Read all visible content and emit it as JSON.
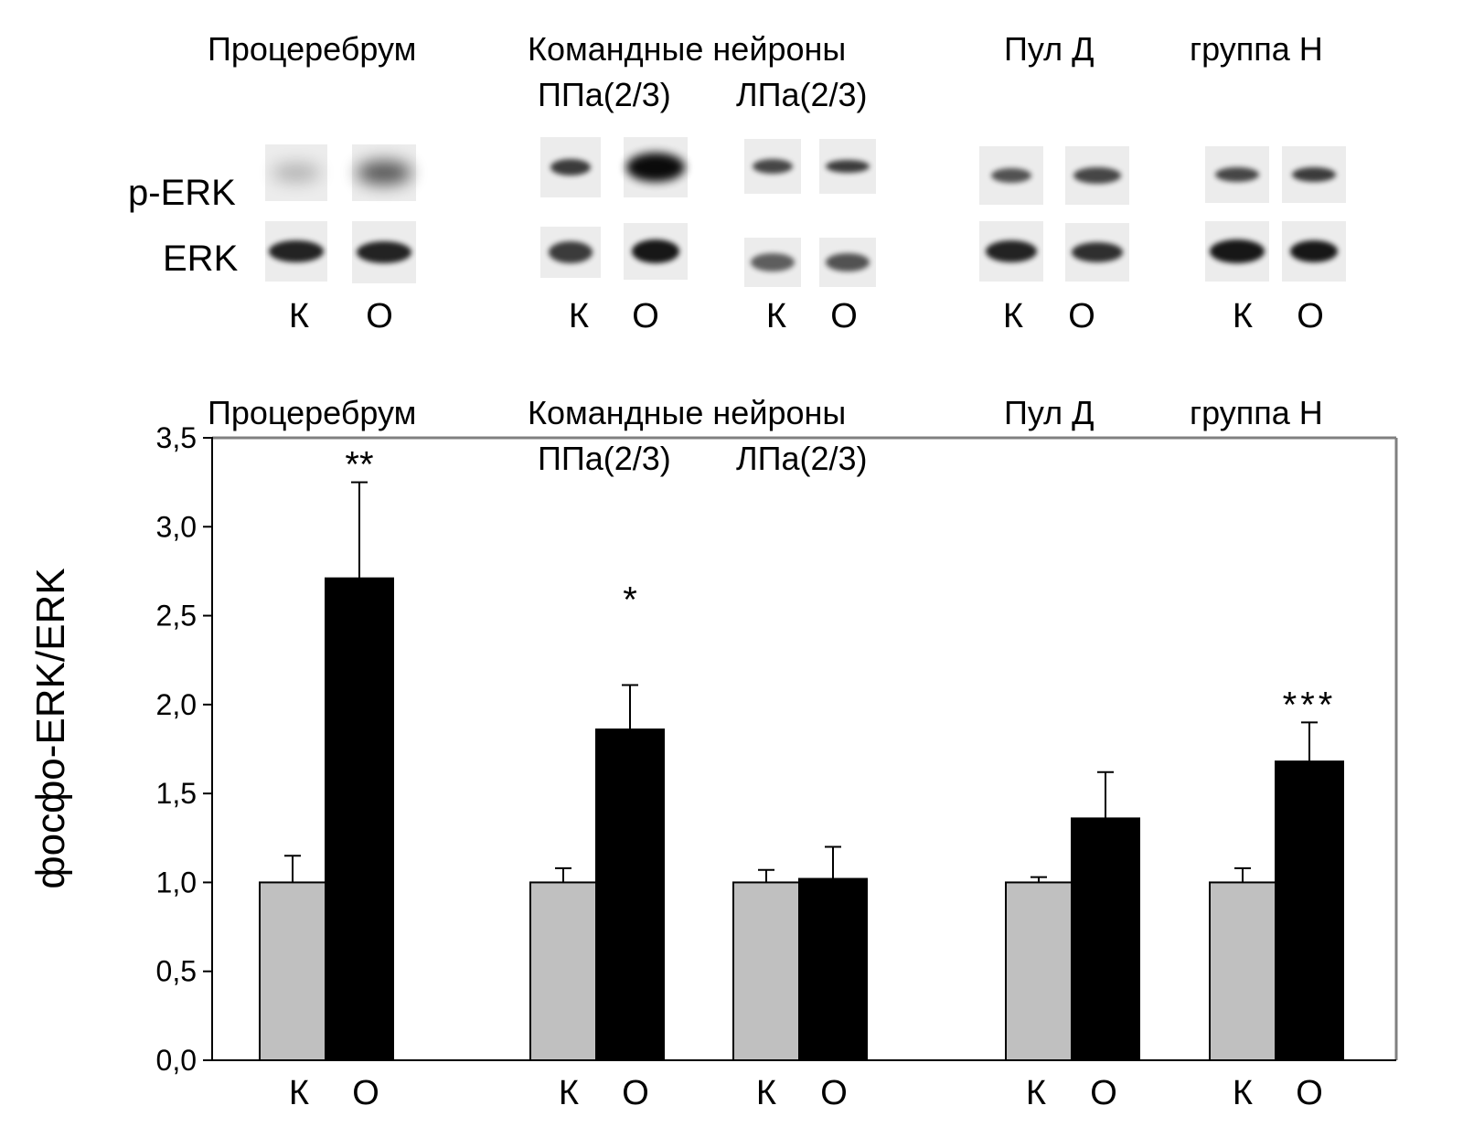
{
  "blot": {
    "row_labels": {
      "p_erk": "p-ERK",
      "erk": "ERK"
    },
    "titles": [
      "Процеребрум",
      "Командные нейроны",
      "Пул Д",
      "группа Н"
    ],
    "subtitles": [
      "ППа(2/3)",
      "ЛПа(2/3)"
    ],
    "lane_labels": [
      "К",
      "О",
      "К",
      "О",
      "К",
      "О",
      "К",
      "О",
      "К",
      "О"
    ]
  },
  "chart_data": {
    "type": "bar",
    "titles": [
      "Процеребрум",
      "Командные нейроны",
      "Пул Д",
      "группа Н"
    ],
    "subtitles": [
      "ППа(2/3)",
      "ЛПа(2/3)"
    ],
    "ylabel": "фосфо-ERK/ERK",
    "xlabel": "",
    "ylim": [
      0,
      3.5
    ],
    "yticks": [
      "0,0",
      "0,5",
      "1,0",
      "1,5",
      "2,0",
      "2,5",
      "3,0",
      "3,5"
    ],
    "grid": false,
    "categories": [
      "Процеребрум",
      "ППа(2/3)",
      "ЛПа(2/3)",
      "Пул Д",
      "группа Н"
    ],
    "x_tick_labels": [
      "К",
      "О",
      "К",
      "О",
      "К",
      "О",
      "К",
      "О",
      "К",
      "О"
    ],
    "series": [
      {
        "values": [
          1.0,
          1.0,
          1.0,
          1.0,
          1.0
        ],
        "errors": [
          0.15,
          0.08,
          0.07,
          0.03,
          0.08
        ],
        "color": "#c0c0c0"
      },
      {
        "values": [
          2.71,
          1.86,
          1.02,
          1.36,
          1.68
        ],
        "errors": [
          0.54,
          0.25,
          0.18,
          0.26,
          0.22
        ],
        "color": "#000000"
      }
    ],
    "significance": [
      "**",
      "*",
      "",
      "",
      "***"
    ]
  }
}
